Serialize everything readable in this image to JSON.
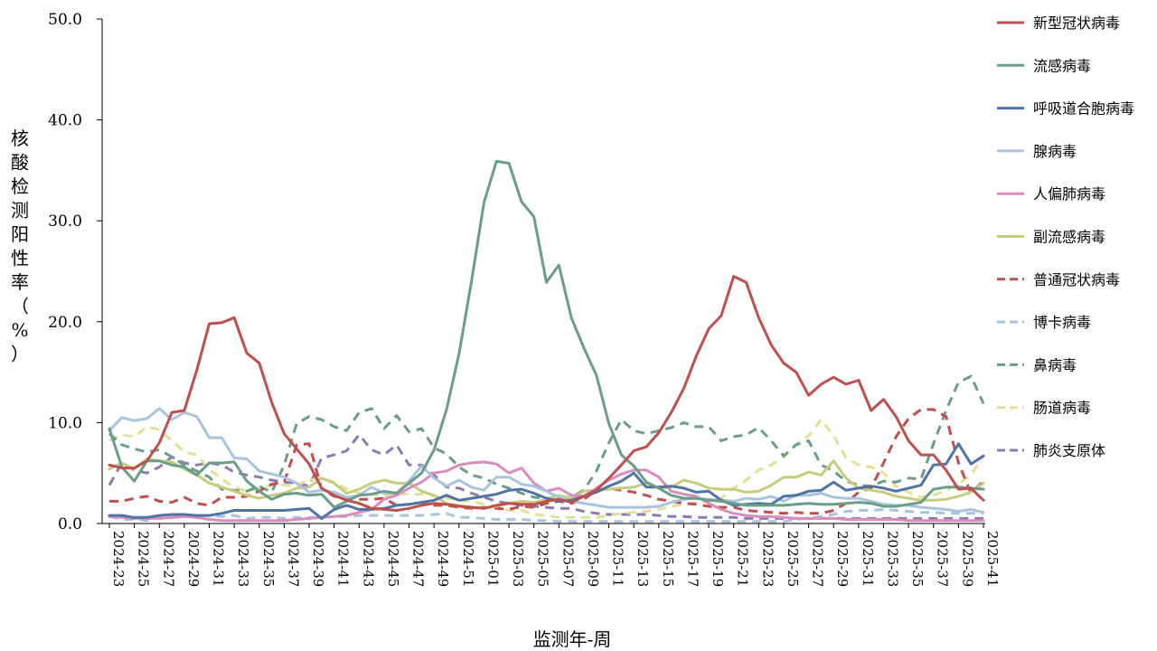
{
  "chart_data": {
    "type": "line",
    "xlabel": "监测年-周",
    "ylabel": "核酸检测阳性率（%）",
    "ylim": [
      0,
      50
    ],
    "yticks": [
      "0.0",
      "10.0",
      "20.0",
      "30.0",
      "40.0",
      "50.0"
    ],
    "grid": false,
    "legend_position": "right",
    "x_tick_labels": [
      "2024-23",
      "2024-25",
      "2024-27",
      "2024-29",
      "2024-31",
      "2024-33",
      "2024-35",
      "2024-37",
      "2024-39",
      "2024-41",
      "2024-43",
      "2024-45",
      "2024-47",
      "2024-49",
      "2024-51",
      "2025-01",
      "2025-03",
      "2025-05",
      "2025-07",
      "2025-09",
      "2025-11",
      "2025-13",
      "2025-15",
      "2025-17",
      "2025-19",
      "2025-21",
      "2025-23",
      "2025-25",
      "2025-27",
      "2025-29",
      "2025-31",
      "2025-33",
      "2025-35",
      "2025-37",
      "2025-39",
      "2025-41"
    ],
    "x": [
      "2024-23",
      "2024-24",
      "2024-25",
      "2024-26",
      "2024-27",
      "2024-28",
      "2024-29",
      "2024-30",
      "2024-31",
      "2024-32",
      "2024-33",
      "2024-34",
      "2024-35",
      "2024-36",
      "2024-37",
      "2024-38",
      "2024-39",
      "2024-40",
      "2024-41",
      "2024-42",
      "2024-43",
      "2024-44",
      "2024-45",
      "2024-46",
      "2024-47",
      "2024-48",
      "2024-49",
      "2024-50",
      "2024-51",
      "2024-52",
      "2025-01",
      "2025-02",
      "2025-03",
      "2025-04",
      "2025-05",
      "2025-06",
      "2025-07",
      "2025-08",
      "2025-09",
      "2025-10",
      "2025-11",
      "2025-12",
      "2025-13",
      "2025-14",
      "2025-15",
      "2025-16",
      "2025-17",
      "2025-18",
      "2025-19",
      "2025-20",
      "2025-21",
      "2025-22",
      "2025-23",
      "2025-24",
      "2025-25",
      "2025-26",
      "2025-27",
      "2025-28",
      "2025-29",
      "2025-30",
      "2025-31",
      "2025-32",
      "2025-33",
      "2025-34",
      "2025-35",
      "2025-36",
      "2025-37",
      "2025-38",
      "2025-39",
      "2025-40",
      "2025-41"
    ],
    "series": [
      {
        "name": "新型冠状病毒",
        "color": "#c0504d",
        "dash": false,
        "values": [
          5.8,
          5.5,
          5.5,
          6.2,
          8.0,
          11.0,
          11.2,
          15.2,
          19.8,
          19.9,
          20.4,
          16.9,
          15.9,
          12.0,
          8.9,
          7.4,
          5.9,
          3.5,
          2.8,
          2.3,
          2.0,
          1.5,
          1.4,
          1.3,
          1.5,
          1.8,
          2.0,
          1.9,
          1.7,
          1.6,
          1.5,
          1.8,
          2.0,
          1.9,
          1.9,
          2.2,
          2.4,
          2.1,
          2.7,
          3.3,
          4.5,
          5.8,
          7.2,
          7.6,
          9.0,
          11.0,
          13.4,
          16.6,
          19.3,
          20.6,
          24.5,
          23.9,
          20.4,
          17.7,
          15.9,
          15.0,
          12.7,
          13.8,
          14.5,
          13.8,
          14.2,
          11.2,
          12.3,
          10.6,
          8.2,
          6.8,
          6.8,
          5.3,
          3.4,
          3.5,
          2.3
        ]
      },
      {
        "name": "流感病毒",
        "color": "#6b9e88",
        "dash": false,
        "values": [
          9.4,
          5.6,
          4.2,
          6.2,
          6.2,
          5.8,
          5.6,
          4.8,
          6.0,
          6.0,
          6.1,
          4.2,
          3.2,
          2.4,
          2.9,
          3.0,
          2.8,
          2.9,
          1.6,
          2.2,
          2.8,
          2.9,
          3.2,
          3.0,
          4.0,
          5.0,
          7.3,
          11.3,
          16.8,
          24.0,
          31.8,
          35.9,
          35.7,
          31.9,
          30.4,
          23.9,
          25.6,
          20.4,
          17.4,
          14.7,
          9.9,
          6.8,
          5.7,
          4.1,
          3.5,
          2.8,
          2.5,
          2.5,
          2.3,
          2.2,
          2.0,
          1.8,
          1.8,
          1.8,
          1.8,
          1.9,
          2.0,
          1.9,
          1.9,
          2.0,
          2.1,
          2.0,
          1.7,
          1.7,
          1.9,
          2.1,
          3.4,
          3.6,
          3.6,
          3.5,
          3.4
        ]
      },
      {
        "name": "呼吸道合胞病毒",
        "color": "#4f74a6",
        "dash": false,
        "values": [
          0.8,
          0.8,
          0.6,
          0.6,
          0.8,
          0.9,
          0.9,
          0.8,
          0.8,
          1.0,
          1.3,
          1.3,
          1.3,
          1.3,
          1.3,
          1.4,
          1.5,
          0.5,
          1.4,
          1.8,
          1.4,
          1.4,
          1.5,
          1.8,
          1.9,
          2.1,
          2.3,
          2.8,
          2.3,
          2.5,
          2.7,
          2.9,
          3.3,
          3.4,
          3.0,
          2.5,
          2.2,
          2.3,
          2.7,
          3.1,
          3.7,
          4.2,
          5.0,
          3.6,
          3.6,
          3.7,
          3.5,
          3.1,
          3.2,
          2.3,
          1.8,
          1.9,
          2.0,
          1.9,
          2.7,
          2.8,
          3.2,
          3.3,
          4.1,
          3.3,
          3.5,
          3.7,
          3.5,
          3.2,
          3.5,
          3.8,
          5.8,
          5.9,
          7.9,
          5.9,
          6.7
        ]
      },
      {
        "name": "腺病毒",
        "color": "#a9c4df",
        "dash": false,
        "values": [
          9.2,
          10.5,
          10.2,
          10.4,
          11.4,
          10.3,
          11.0,
          10.6,
          8.5,
          8.5,
          6.5,
          6.4,
          5.2,
          4.9,
          4.6,
          4.0,
          3.1,
          3.3,
          3.1,
          2.6,
          2.8,
          3.6,
          3.0,
          3.0,
          4.2,
          5.7,
          4.5,
          3.7,
          4.3,
          3.6,
          3.3,
          4.6,
          4.6,
          3.9,
          3.7,
          3.2,
          2.6,
          2.2,
          2.0,
          1.8,
          1.6,
          1.6,
          1.6,
          1.6,
          1.7,
          2.1,
          2.4,
          2.5,
          2.4,
          2.3,
          2.2,
          2.5,
          2.4,
          2.7,
          2.2,
          2.8,
          2.8,
          3.0,
          2.6,
          2.5,
          2.5,
          2.2,
          1.9,
          1.8,
          1.8,
          1.6,
          1.5,
          1.4,
          1.2,
          1.4,
          1.1
        ]
      },
      {
        "name": "人偏肺病毒",
        "color": "#d98cbd",
        "dash": false,
        "values": [
          0.7,
          0.6,
          0.5,
          0.5,
          0.5,
          0.6,
          0.7,
          0.6,
          0.4,
          0.3,
          0.3,
          0.3,
          0.3,
          0.3,
          0.3,
          0.4,
          0.5,
          0.6,
          0.7,
          0.8,
          1.1,
          1.4,
          2.4,
          2.8,
          3.5,
          4.1,
          5.0,
          5.2,
          5.8,
          6.0,
          6.1,
          5.9,
          5.0,
          5.5,
          4.0,
          3.2,
          3.5,
          2.8,
          2.7,
          3.5,
          4.3,
          4.9,
          5.3,
          5.3,
          4.6,
          3.2,
          2.9,
          2.7,
          2.0,
          1.4,
          1.0,
          0.8,
          0.7,
          0.7,
          0.6,
          0.5,
          0.5,
          0.5,
          0.5,
          0.4,
          0.4,
          0.4,
          0.4,
          0.4,
          0.3,
          0.3,
          0.3,
          0.3,
          0.3,
          0.3,
          0.3
        ]
      },
      {
        "name": "副流感病毒",
        "color": "#c8cc7e",
        "dash": false,
        "values": [
          5.4,
          6.0,
          5.4,
          6.4,
          6.2,
          6.1,
          5.4,
          4.8,
          4.0,
          3.6,
          3.2,
          2.8,
          2.5,
          2.8,
          3.0,
          3.5,
          3.6,
          4.5,
          4.0,
          3.0,
          3.4,
          4.0,
          4.3,
          4.0,
          4.0,
          3.2,
          2.8,
          2.0,
          1.8,
          1.6,
          1.5,
          1.7,
          2.0,
          2.2,
          2.1,
          2.4,
          2.8,
          2.5,
          3.2,
          3.3,
          3.4,
          3.5,
          3.6,
          4.0,
          3.5,
          3.6,
          4.3,
          4.0,
          3.5,
          3.4,
          3.4,
          3.1,
          3.2,
          3.8,
          4.6,
          4.6,
          5.1,
          4.8,
          6.2,
          4.5,
          3.5,
          3.3,
          3.1,
          2.7,
          2.5,
          2.3,
          2.3,
          2.4,
          2.7,
          3.1,
          4.0
        ]
      },
      {
        "name": "普通冠状病毒",
        "color": "#c0504d",
        "dash": true,
        "values": [
          2.2,
          2.2,
          2.5,
          2.7,
          2.2,
          2.1,
          2.6,
          2.0,
          1.8,
          2.6,
          2.6,
          2.7,
          3.2,
          3.9,
          4.1,
          7.8,
          7.9,
          3.4,
          2.7,
          2.5,
          2.4,
          2.4,
          2.5,
          1.8,
          1.9,
          2.1,
          1.8,
          1.8,
          1.6,
          1.5,
          1.6,
          1.5,
          1.4,
          1.7,
          1.6,
          2.0,
          2.2,
          2.0,
          2.4,
          3.3,
          3.5,
          3.3,
          3.1,
          2.8,
          2.4,
          2.2,
          2.0,
          1.9,
          1.7,
          1.6,
          1.6,
          1.3,
          1.2,
          1.1,
          1.0,
          1.1,
          1.0,
          1.0,
          1.3,
          2.0,
          3.1,
          3.5,
          6.0,
          8.6,
          10.4,
          11.3,
          11.3,
          10.6,
          6.0,
          3.0,
          4.2
        ]
      },
      {
        "name": "博卡病毒",
        "color": "#a9c4df",
        "dash": true,
        "values": [
          0.7,
          0.4,
          0.4,
          0.3,
          0.6,
          0.6,
          0.6,
          0.8,
          0.8,
          0.7,
          0.8,
          0.5,
          0.6,
          0.6,
          0.5,
          0.6,
          0.6,
          0.6,
          0.7,
          0.7,
          0.8,
          0.8,
          0.8,
          0.8,
          0.8,
          0.8,
          0.9,
          1.0,
          0.6,
          0.6,
          0.5,
          0.4,
          0.4,
          0.4,
          0.3,
          0.3,
          0.2,
          0.2,
          0.2,
          0.2,
          0.2,
          0.2,
          0.2,
          0.2,
          0.2,
          0.2,
          0.2,
          0.2,
          0.2,
          0.2,
          0.2,
          0.2,
          0.2,
          0.2,
          0.2,
          0.4,
          0.5,
          0.7,
          0.9,
          1.2,
          1.3,
          1.3,
          1.4,
          1.3,
          1.2,
          1.1,
          1.1,
          1.0,
          1.0,
          1.0,
          1.0
        ]
      },
      {
        "name": "鼻病毒",
        "color": "#6b9e88",
        "dash": true,
        "values": [
          8.9,
          7.8,
          7.4,
          7.1,
          7.3,
          6.6,
          5.8,
          5.2,
          4.6,
          3.4,
          3.3,
          3.2,
          3.7,
          3.1,
          5.8,
          9.9,
          10.6,
          10.3,
          9.6,
          9.2,
          11.0,
          11.4,
          9.4,
          10.7,
          9.1,
          9.4,
          7.5,
          6.9,
          5.6,
          4.8,
          4.5,
          3.9,
          3.5,
          3.0,
          2.6,
          2.5,
          2.5,
          2.6,
          3.3,
          5.2,
          8.0,
          10.3,
          9.2,
          8.9,
          9.2,
          9.5,
          10.0,
          9.6,
          9.6,
          8.2,
          8.6,
          8.8,
          9.5,
          8.2,
          6.7,
          7.8,
          8.2,
          5.8,
          5.2,
          4.2,
          3.8,
          3.7,
          4.2,
          4.1,
          4.5,
          4.4,
          7.9,
          11.2,
          14.0,
          14.6,
          11.9
        ]
      },
      {
        "name": "肠道病毒",
        "color": "#e4e095",
        "dash": true,
        "values": [
          8.2,
          8.8,
          8.6,
          9.6,
          9.3,
          8.2,
          7.1,
          6.8,
          5.4,
          4.4,
          3.6,
          3.2,
          3.5,
          3.8,
          3.8,
          3.8,
          4.3,
          4.5,
          4.1,
          3.4,
          3.0,
          2.9,
          2.7,
          3.0,
          2.9,
          2.9,
          2.7,
          2.5,
          2.3,
          2.2,
          1.9,
          1.7,
          1.3,
          1.3,
          0.9,
          0.8,
          0.6,
          0.6,
          0.6,
          0.6,
          0.8,
          1.0,
          1.1,
          1.2,
          1.4,
          1.7,
          1.9,
          2.1,
          2.2,
          2.5,
          3.5,
          4.3,
          5.3,
          5.8,
          6.6,
          7.9,
          8.7,
          10.3,
          8.7,
          6.5,
          5.8,
          5.6,
          5.0,
          3.7,
          3.1,
          2.6,
          2.8,
          3.3,
          3.9,
          4.8,
          6.7
        ]
      },
      {
        "name": "肺炎支原体",
        "color": "#8f7bb0",
        "dash": true,
        "values": [
          3.8,
          6.0,
          5.3,
          5.0,
          5.6,
          6.6,
          6.0,
          5.8,
          6.0,
          5.8,
          5.1,
          4.8,
          4.6,
          4.3,
          4.1,
          4.0,
          3.7,
          6.5,
          6.8,
          7.2,
          8.8,
          7.3,
          6.8,
          7.8,
          5.8,
          5.8,
          4.8,
          3.6,
          3.5,
          3.0,
          2.6,
          2.2,
          2.0,
          1.8,
          1.7,
          1.6,
          1.5,
          1.5,
          1.2,
          1.0,
          0.9,
          0.9,
          0.9,
          0.9,
          0.8,
          0.7,
          0.7,
          0.6,
          0.6,
          0.6,
          0.6,
          0.5,
          0.5,
          0.5,
          0.5,
          0.5,
          0.5,
          0.5,
          0.5,
          0.5,
          0.5,
          0.5,
          0.5,
          0.5,
          0.5,
          0.5,
          0.5,
          0.5,
          0.5,
          0.5,
          0.5
        ]
      }
    ]
  }
}
